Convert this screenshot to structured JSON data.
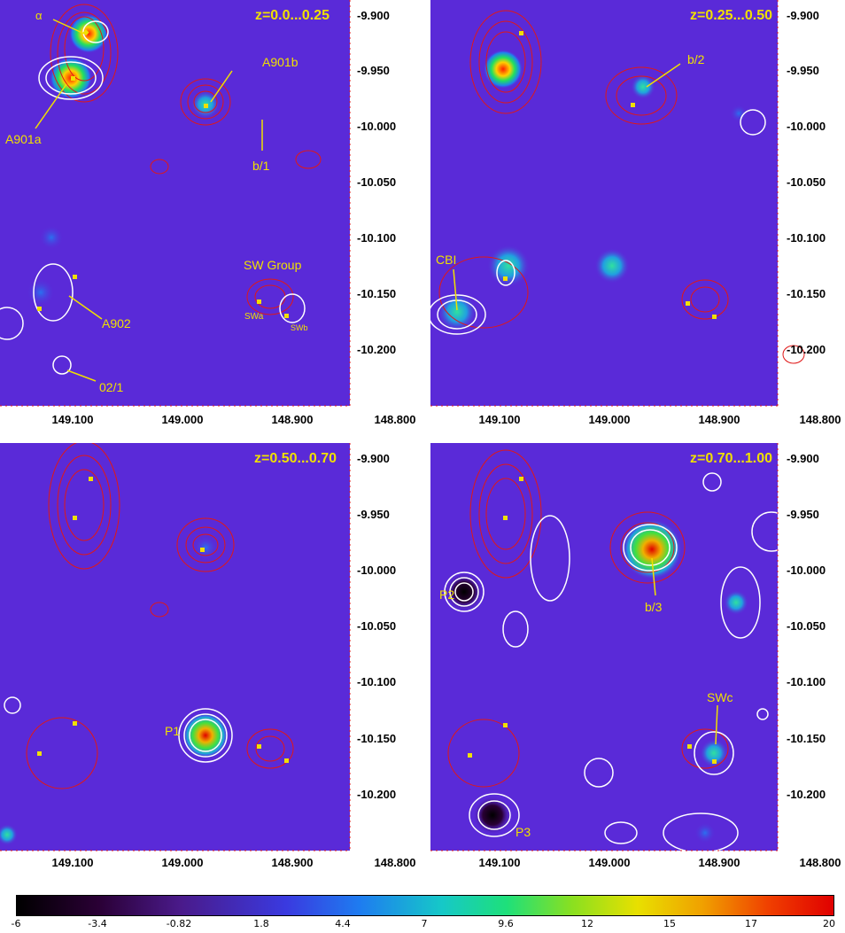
{
  "panels": [
    {
      "z_label": "z=0.0...0.25",
      "dec_ticks": [
        "-9.900",
        "-9.950",
        "-10.000",
        "-10.050",
        "-10.100",
        "-10.150",
        "-10.200"
      ],
      "ra_ticks": [
        "149.100",
        "149.000",
        "148.900",
        "148.800"
      ],
      "annotations": [
        "α",
        "A901b",
        "A901a",
        "b/1",
        "SW Group",
        "A902",
        "SWa",
        "SWb",
        "02/1"
      ]
    },
    {
      "z_label": "z=0.25...0.50",
      "dec_ticks": [
        "-9.900",
        "-9.950",
        "-10.000",
        "-10.050",
        "-10.100",
        "-10.150",
        "-10.200"
      ],
      "ra_ticks": [
        "149.100",
        "149.000",
        "148.900",
        "148.800"
      ],
      "annotations": [
        "b/2",
        "CBI"
      ]
    },
    {
      "z_label": "z=0.50...0.70",
      "dec_ticks": [
        "-9.900",
        "-9.950",
        "-10.000",
        "-10.050",
        "-10.100",
        "-10.150",
        "-10.200"
      ],
      "ra_ticks": [
        "149.100",
        "149.000",
        "148.900",
        "148.800"
      ],
      "annotations": [
        "P1"
      ]
    },
    {
      "z_label": "z=0.70...1.00",
      "dec_ticks": [
        "-9.900",
        "-9.950",
        "-10.000",
        "-10.050",
        "-10.100",
        "-10.150",
        "-10.200"
      ],
      "ra_ticks": [
        "149.100",
        "149.000",
        "148.900",
        "148.800"
      ],
      "annotations": [
        "P2",
        "b/3",
        "SWc",
        "P3"
      ]
    }
  ],
  "colorbar": {
    "ticks": [
      "-6",
      "-3.4",
      "-0.82",
      "1.8",
      "4.4",
      "7",
      "9.6",
      "12",
      "15",
      "17",
      "20"
    ]
  },
  "colors": {
    "background": "#5a2ad8",
    "red_contour": "#e01818",
    "white_contour": "#ffffff",
    "label": "#f0e000"
  }
}
